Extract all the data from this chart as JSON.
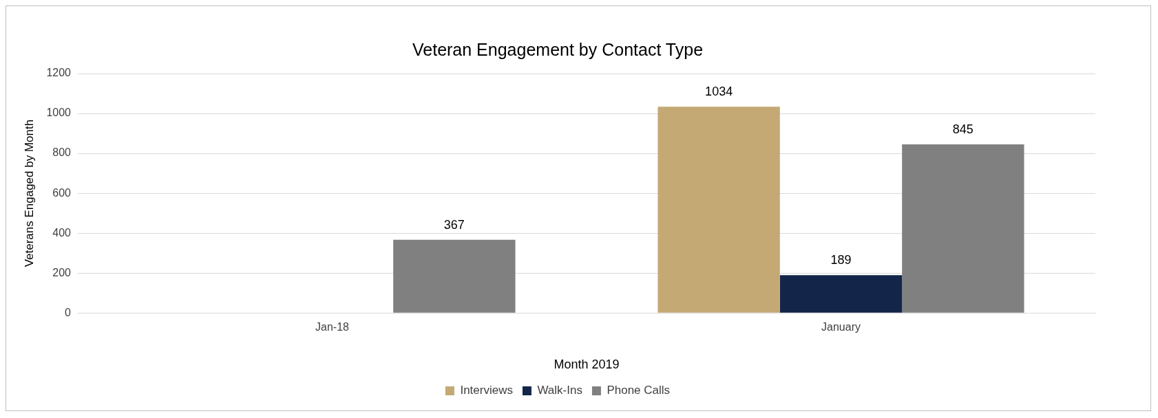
{
  "chart_data": {
    "type": "bar",
    "title": "Veteran Engagement by Contact Type",
    "xlabel": "Month 2019",
    "ylabel": "Veterans Engaged by Month",
    "categories": [
      "Jan-18",
      "January"
    ],
    "series": [
      {
        "name": "Interviews",
        "color": "#c4a974",
        "values": [
          null,
          1034
        ]
      },
      {
        "name": "Walk-Ins",
        "color": "#13264a",
        "values": [
          null,
          189
        ]
      },
      {
        "name": "Phone Calls",
        "color": "#808080",
        "values": [
          367,
          845
        ]
      }
    ],
    "ylim": [
      0,
      1200
    ],
    "yticks": [
      0,
      200,
      400,
      600,
      800,
      1000,
      1200
    ],
    "grid": "y",
    "legend": "bottom",
    "data_labels": true
  }
}
